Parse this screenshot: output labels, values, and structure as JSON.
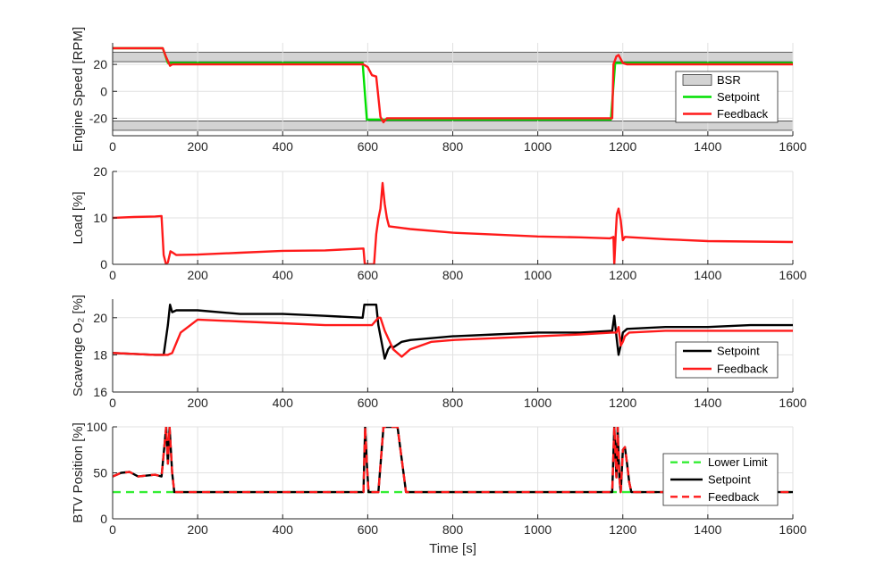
{
  "chart_data": [
    {
      "type": "line",
      "ylabel": "Engine Speed [RPM]",
      "xlim": [
        0,
        1600
      ],
      "ylim": [
        -33,
        36
      ],
      "xticks": [
        0,
        200,
        400,
        600,
        800,
        1000,
        1200,
        1400,
        1600
      ],
      "yticks": [
        -20,
        0,
        20
      ],
      "grid": true,
      "legend_position": "right",
      "bands": [
        {
          "name": "BSR",
          "ranges": [
            [
              22,
              29
            ],
            [
              -29,
              -22
            ]
          ],
          "color": "#d3d3d3"
        }
      ],
      "series": [
        {
          "name": "Setpoint",
          "color": "#00e000",
          "x": [
            0,
            118,
            130,
            140,
            588,
            598,
            1172,
            1182,
            1600
          ],
          "y": [
            32,
            32,
            21,
            21,
            21,
            -21,
            -21,
            21,
            21
          ]
        },
        {
          "name": "Feedback",
          "color": "#ff1a1a",
          "x": [
            0,
            118,
            125,
            135,
            140,
            590,
            600,
            610,
            620,
            630,
            637,
            645,
            1175,
            1178,
            1185,
            1190,
            1195,
            1200,
            1210,
            1600
          ],
          "y": [
            32,
            32,
            26,
            19,
            20,
            20,
            18,
            12,
            11,
            -19,
            -23,
            -20,
            -20,
            20,
            26,
            27,
            24,
            21,
            20,
            20
          ]
        }
      ]
    },
    {
      "type": "line",
      "ylabel": "Load [%]",
      "xlim": [
        0,
        1600
      ],
      "ylim": [
        0,
        20
      ],
      "xticks": [
        0,
        200,
        400,
        600,
        800,
        1000,
        1200,
        1400,
        1600
      ],
      "yticks": [
        0,
        10,
        20
      ],
      "grid": true,
      "series": [
        {
          "name": "Feedback",
          "color": "#ff1a1a",
          "x": [
            0,
            50,
            100,
            115,
            120,
            125,
            130,
            136,
            140,
            150,
            200,
            300,
            400,
            500,
            590,
            593,
            600,
            615,
            620,
            625,
            630,
            635,
            640,
            645,
            650,
            700,
            800,
            900,
            1000,
            1100,
            1170,
            1178,
            1180,
            1183,
            1186,
            1190,
            1195,
            1200,
            1205,
            1300,
            1400,
            1600
          ],
          "y": [
            10,
            10.2,
            10.3,
            10.4,
            2,
            0.2,
            0.4,
            2.8,
            2.6,
            2.0,
            2.1,
            2.5,
            2.9,
            3.0,
            3.4,
            0.2,
            0,
            0,
            6.5,
            9.8,
            12,
            17.5,
            13,
            10,
            8.2,
            7.6,
            6.8,
            6.4,
            6.0,
            5.8,
            5.6,
            5.9,
            0,
            6,
            10.8,
            12,
            9.5,
            5.2,
            5.9,
            5.4,
            5.0,
            4.8
          ]
        }
      ]
    },
    {
      "type": "line",
      "ylabel": "Scavenge O₂ [%]",
      "xlim": [
        0,
        1600
      ],
      "ylim": [
        16,
        21
      ],
      "xticks": [
        0,
        200,
        400,
        600,
        800,
        1000,
        1200,
        1400,
        1600
      ],
      "yticks": [
        16,
        18,
        20
      ],
      "grid": true,
      "legend_position": "right",
      "series": [
        {
          "name": "Setpoint",
          "color": "#000000",
          "x": [
            0,
            100,
            120,
            130,
            135,
            140,
            150,
            200,
            300,
            400,
            500,
            588,
            592,
            620,
            625,
            640,
            648,
            655,
            660,
            680,
            700,
            800,
            900,
            1000,
            1100,
            1175,
            1180,
            1185,
            1190,
            1195,
            1200,
            1210,
            1300,
            1400,
            1500,
            1600
          ],
          "y": [
            18.1,
            18.0,
            18.0,
            19.6,
            20.7,
            20.3,
            20.4,
            20.4,
            20.2,
            20.2,
            20.1,
            20.0,
            20.7,
            20.7,
            19.6,
            17.8,
            18.3,
            18.5,
            18.4,
            18.7,
            18.8,
            19.0,
            19.1,
            19.2,
            19.2,
            19.3,
            20.1,
            19.0,
            18.0,
            18.5,
            19.2,
            19.4,
            19.5,
            19.5,
            19.6,
            19.6
          ]
        },
        {
          "name": "Feedback",
          "color": "#ff1a1a",
          "x": [
            0,
            100,
            130,
            140,
            160,
            200,
            300,
            400,
            500,
            600,
            610,
            625,
            630,
            640,
            660,
            680,
            700,
            750,
            800,
            900,
            1000,
            1100,
            1175,
            1185,
            1190,
            1195,
            1200,
            1205,
            1215,
            1300,
            1400,
            1600
          ],
          "y": [
            18.1,
            18.0,
            18.0,
            18.1,
            19.2,
            19.9,
            19.8,
            19.7,
            19.6,
            19.6,
            19.6,
            20.0,
            20.0,
            19.3,
            18.3,
            17.9,
            18.3,
            18.7,
            18.8,
            18.9,
            19.0,
            19.1,
            19.2,
            19.2,
            19.5,
            18.5,
            18.7,
            19.0,
            19.2,
            19.3,
            19.3,
            19.3
          ]
        }
      ]
    },
    {
      "type": "line",
      "ylabel": "BTV Position [%]",
      "xlabel": "Time [s]",
      "xlim": [
        0,
        1600
      ],
      "ylim": [
        0,
        100
      ],
      "xticks": [
        0,
        200,
        400,
        600,
        800,
        1000,
        1200,
        1400,
        1600
      ],
      "yticks": [
        0,
        50,
        100
      ],
      "grid": true,
      "legend_position": "right",
      "series": [
        {
          "name": "Lower Limit",
          "color": "#33ee33",
          "dashed": true,
          "x": [
            0,
            1600
          ],
          "y": [
            29,
            29
          ]
        },
        {
          "name": "Setpoint",
          "color": "#000000",
          "x": [
            0,
            20,
            40,
            60,
            80,
            100,
            115,
            122,
            126,
            130,
            134,
            140,
            145,
            590,
            594,
            598,
            602,
            605,
            625,
            637,
            645,
            660,
            670,
            690,
            1175,
            1180,
            1185,
            1188,
            1192,
            1195,
            1200,
            1205,
            1210,
            1215,
            1220,
            1600
          ],
          "y": [
            46,
            50,
            51,
            46,
            47,
            48,
            46,
            80,
            100,
            60,
            100,
            50,
            29,
            29,
            100,
            60,
            29,
            29,
            29,
            100,
            100,
            100,
            100,
            29,
            29,
            100,
            45,
            100,
            45,
            29,
            75,
            78,
            60,
            40,
            29,
            29
          ]
        },
        {
          "name": "Feedback",
          "color": "#ff1a1a",
          "dashed": true,
          "x": [
            0,
            20,
            40,
            60,
            80,
            100,
            115,
            122,
            126,
            130,
            134,
            140,
            145,
            590,
            594,
            598,
            602,
            605,
            625,
            637,
            645,
            660,
            670,
            690,
            1175,
            1180,
            1185,
            1188,
            1192,
            1195,
            1200,
            1205,
            1210,
            1215,
            1220,
            1600
          ],
          "y": [
            46,
            50,
            51,
            46,
            47,
            48,
            46,
            80,
            100,
            60,
            100,
            50,
            29,
            29,
            100,
            60,
            29,
            29,
            29,
            100,
            100,
            100,
            100,
            29,
            29,
            100,
            45,
            100,
            45,
            29,
            75,
            78,
            60,
            40,
            29,
            29
          ]
        }
      ]
    }
  ]
}
